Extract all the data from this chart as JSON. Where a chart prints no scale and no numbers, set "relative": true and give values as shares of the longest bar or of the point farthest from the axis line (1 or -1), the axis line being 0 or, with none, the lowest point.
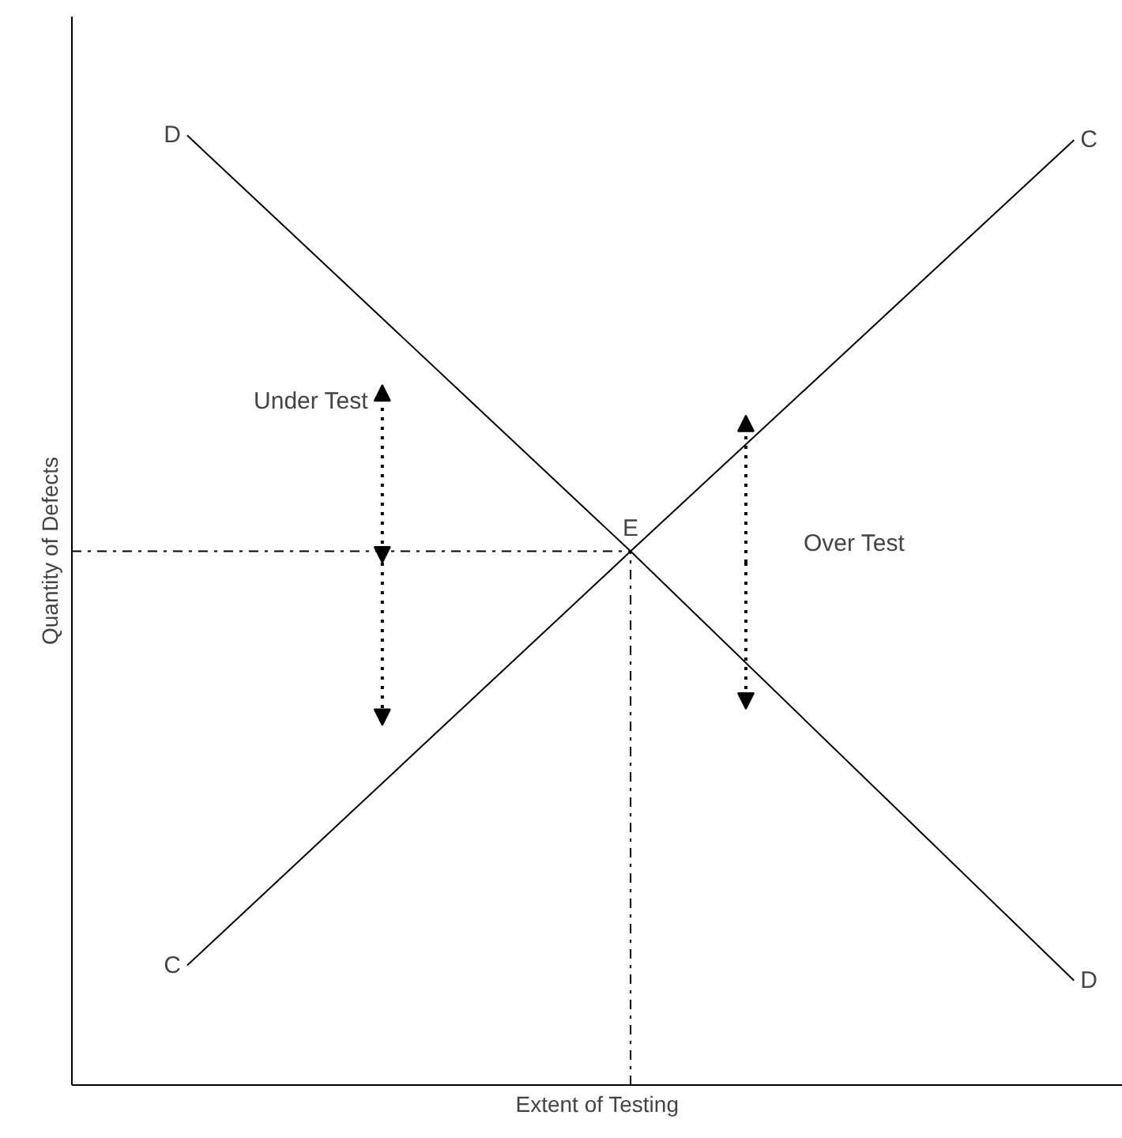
{
  "chart_data": {
    "type": "line",
    "relative": true,
    "xlabel": "Extent of Testing",
    "ylabel": "Quantity of Defects",
    "categories": [
      null,
      null,
      null
    ],
    "series": [
      {
        "name": "D",
        "color": "#000000",
        "values": [
          1,
          0.562,
          0.11
        ]
      },
      {
        "name": "C",
        "color": "#000000",
        "values": [
          0.126,
          0.562,
          0.995
        ]
      }
    ],
    "ref_lines": [
      {
        "axis": "y",
        "value": 0.562,
        "line_style": "dashdot",
        "color": "#000000"
      }
    ],
    "annotations": [
      "E",
      "Under Test",
      "Over Test"
    ],
    "marker": "none",
    "line_style": "solid"
  }
}
